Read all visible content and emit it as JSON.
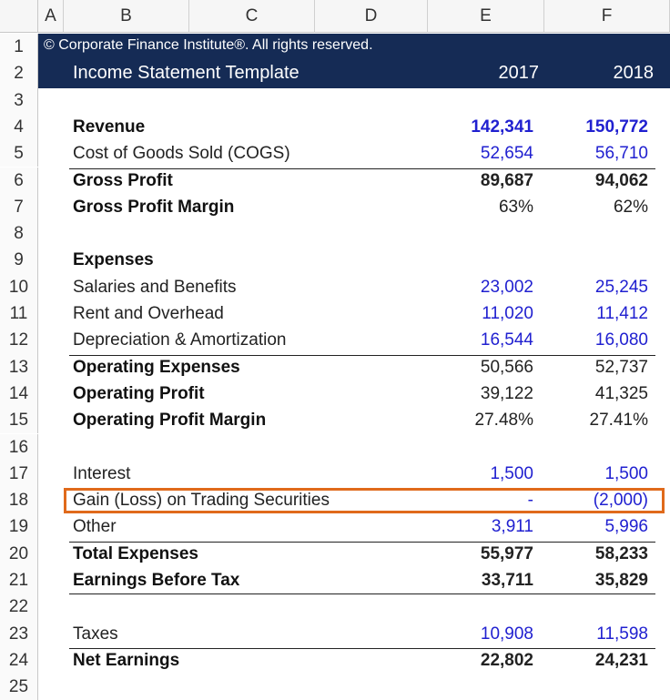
{
  "column_headers": [
    "A",
    "B",
    "C",
    "D",
    "E",
    "F"
  ],
  "copyright": "© Corporate Finance Institute®. All rights reserved.",
  "template_title": "Income Statement Template",
  "years": [
    "2017",
    "2018"
  ],
  "rows": [
    {
      "n": "1"
    },
    {
      "n": "2"
    },
    {
      "n": "3"
    },
    {
      "n": "4",
      "label": "Revenue",
      "bold": true,
      "v2017": "142,341",
      "v2018": "150,772",
      "blue": true
    },
    {
      "n": "5",
      "label": "Cost of Goods Sold (COGS)",
      "v2017": "52,654",
      "v2018": "56,710",
      "blue": true
    },
    {
      "n": "6",
      "label": "Gross Profit",
      "bold": true,
      "v2017": "89,687",
      "v2018": "94,062"
    },
    {
      "n": "7",
      "label": "Gross Profit Margin",
      "bold": true,
      "v2017": "63%",
      "v2018": "62%"
    },
    {
      "n": "8"
    },
    {
      "n": "9",
      "label": "Expenses",
      "bold": true
    },
    {
      "n": "10",
      "label": "Salaries and Benefits",
      "v2017": "23,002",
      "v2018": "25,245",
      "blue": true
    },
    {
      "n": "11",
      "label": "Rent and Overhead",
      "v2017": "11,020",
      "v2018": "11,412",
      "blue": true
    },
    {
      "n": "12",
      "label": "Depreciation & Amortization",
      "v2017": "16,544",
      "v2018": "16,080",
      "blue": true
    },
    {
      "n": "13",
      "label": "Operating Expenses",
      "bold": true,
      "v2017": "50,566",
      "v2018": "52,737"
    },
    {
      "n": "14",
      "label": "Operating Profit",
      "bold": true,
      "v2017": "39,122",
      "v2018": "41,325"
    },
    {
      "n": "15",
      "label": "Operating Profit Margin",
      "bold": true,
      "v2017": "27.48%",
      "v2018": "27.41%"
    },
    {
      "n": "16"
    },
    {
      "n": "17",
      "label": "Interest",
      "v2017": "1,500",
      "v2018": "1,500",
      "blue": true
    },
    {
      "n": "18",
      "label": "Gain (Loss) on Trading Securities",
      "v2017": "-",
      "v2018": "(2,000)",
      "blue": true
    },
    {
      "n": "19",
      "label": "Other",
      "v2017": "3,911",
      "v2018": "5,996",
      "blue": true
    },
    {
      "n": "20",
      "label": "Total Expenses",
      "bold": true,
      "v2017": "55,977",
      "v2018": "58,233"
    },
    {
      "n": "21",
      "label": "Earnings Before Tax",
      "bold": true,
      "v2017": "33,711",
      "v2018": "35,829"
    },
    {
      "n": "22"
    },
    {
      "n": "23",
      "label": "Taxes",
      "v2017": "10,908",
      "v2018": "11,598",
      "blue": true
    },
    {
      "n": "24",
      "label": "Net Earnings",
      "bold": true,
      "v2017": "22,802",
      "v2018": "24,231"
    },
    {
      "n": "25"
    }
  ],
  "colors": {
    "header_band": "#152b55",
    "input_blue": "#2020d0",
    "highlight": "#e06a1b"
  }
}
